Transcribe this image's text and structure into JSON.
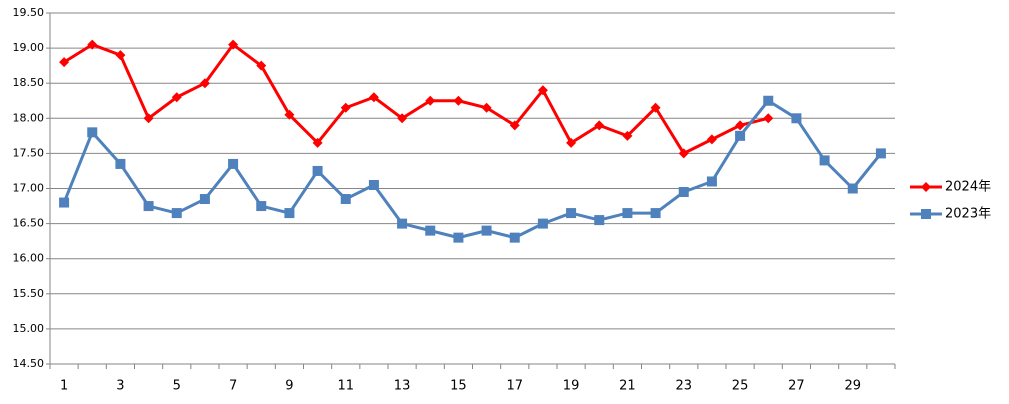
{
  "chart_data": {
    "type": "line",
    "categories": [
      1,
      null,
      3,
      null,
      5,
      null,
      7,
      null,
      9,
      null,
      11,
      null,
      13,
      null,
      15,
      null,
      17,
      null,
      19,
      null,
      21,
      null,
      23,
      null,
      25,
      null,
      27,
      null,
      29,
      null
    ],
    "series": [
      {
        "name": "2024年",
        "color": "#ff0000",
        "marker": "diamond",
        "values": [
          18.8,
          19.05,
          18.9,
          18.0,
          18.3,
          18.5,
          19.05,
          18.75,
          18.05,
          17.65,
          18.15,
          18.3,
          18.0,
          18.25,
          18.25,
          18.15,
          17.9,
          18.4,
          17.65,
          17.9,
          17.75,
          18.15,
          17.5,
          17.7,
          17.9,
          18.0,
          null,
          null,
          null,
          null
        ]
      },
      {
        "name": "2023年",
        "color": "#4f81bd",
        "marker": "square",
        "values": [
          16.8,
          17.8,
          17.35,
          16.75,
          16.65,
          16.85,
          17.35,
          16.75,
          16.65,
          17.25,
          16.85,
          17.05,
          16.5,
          16.4,
          16.3,
          16.4,
          16.3,
          16.5,
          16.65,
          16.55,
          16.65,
          16.65,
          16.95,
          17.1,
          17.75,
          18.25,
          18.0,
          17.4,
          17.0,
          17.5
        ]
      }
    ],
    "ylim": [
      14.5,
      19.5
    ],
    "yticks": [
      {
        "value": 14.5,
        "label": "14.50"
      },
      {
        "value": 15.0,
        "label": "15.00"
      },
      {
        "value": 15.5,
        "label": "15.50"
      },
      {
        "value": 16.0,
        "label": "16.00"
      },
      {
        "value": 16.5,
        "label": "16.50"
      },
      {
        "value": 17.0,
        "label": "17.00"
      },
      {
        "value": 17.5,
        "label": "17.50"
      },
      {
        "value": 18.0,
        "label": "18.00"
      },
      {
        "value": 18.5,
        "label": "18.50"
      },
      {
        "value": 19.0,
        "label": "19.00"
      },
      {
        "value": 19.5,
        "label": "19.50"
      }
    ],
    "grid": true,
    "legend": "right"
  }
}
